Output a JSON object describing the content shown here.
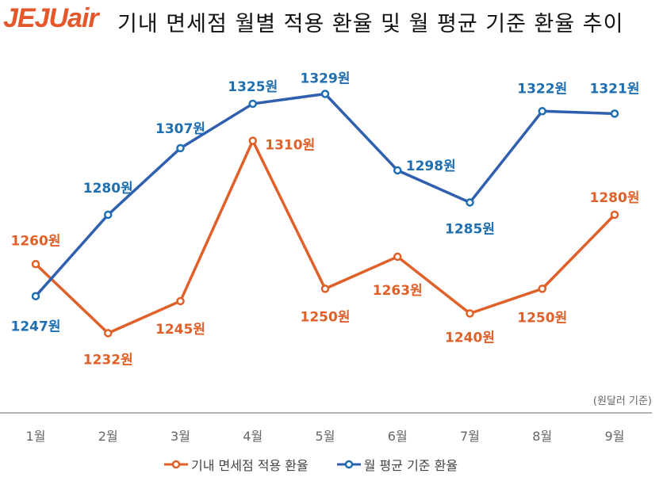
{
  "header": {
    "logo": "JEJUair",
    "title": "기내 면세점 월별 적용 환율 및 월 평균 기준 환율 추이"
  },
  "chart_data": {
    "type": "line",
    "title": "기내 면세점 월별 적용 환율 및 월 평균 기준 환율 추이",
    "unit_note": "(원달러 기준)",
    "categories": [
      "1월",
      "2월",
      "3월",
      "4월",
      "5월",
      "6월",
      "7월",
      "8월",
      "9월"
    ],
    "ylim": [
      1200,
      1360
    ],
    "grid": false,
    "legend_position": "bottom",
    "value_suffix": "원",
    "series": [
      {
        "name": "기내 면세점 적용 환율",
        "color": "#e0602a",
        "values": [
          1260,
          1232,
          1245,
          1310,
          1250,
          1263,
          1240,
          1250,
          1280
        ]
      },
      {
        "name": "월 평균 기준 환율",
        "color": "#2f5fae",
        "label_color": "#1f6fb0",
        "values": [
          1247,
          1280,
          1307,
          1325,
          1329,
          1298,
          1285,
          1322,
          1321
        ]
      }
    ]
  }
}
